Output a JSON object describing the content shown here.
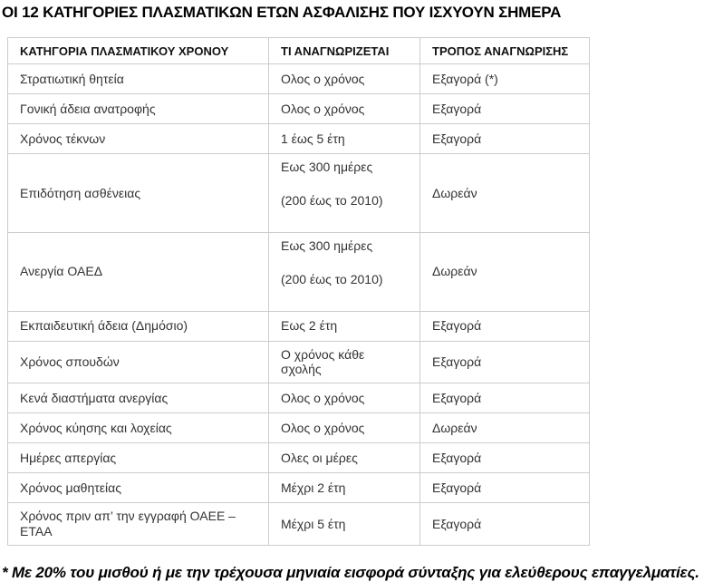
{
  "page": {
    "title": "ΟΙ 12 ΚΑΤΗΓΟΡΙΕΣ ΠΛΑΣΜΑΤΙΚΩΝ ΕΤΩΝ ΑΣΦΑΛΙΣΗΣ ΠΟΥ ΙΣΧΥΟΥΝ ΣΗΜΕΡΑ",
    "footnote": "* Με 20% του μισθού ή με την τρέχουσα μηνιαία εισφορά σύνταξης για ελεύθερους επαγγελματίες."
  },
  "colors": {
    "background": "#ffffff",
    "title_text": "#000000",
    "body_text": "#333333",
    "table_border": "#cccccc"
  },
  "table": {
    "headers": [
      "ΚΑΤΗΓΟΡΙΑ ΠΛΑΣΜΑΤΙΚΟΥ ΧΡΟΝΟΥ",
      "ΤΙ ΑΝΑΓΝΩΡΙΖΕΤΑΙ",
      "ΤΡΟΠΟΣ ΑΝΑΓΝΩΡΙΣΗΣ"
    ],
    "rows": [
      {
        "category": "Στρατιωτική θητεία",
        "recognized": [
          "Ολος ο χρόνος"
        ],
        "method": "Εξαγορά (*)"
      },
      {
        "category": "Γονική άδεια ανατροφής",
        "recognized": [
          "Ολος ο χρόνος"
        ],
        "method": "Εξαγορά"
      },
      {
        "category": "Χρόνος τέκνων",
        "recognized": [
          "1 έως 5 έτη"
        ],
        "method": "Εξαγορά"
      },
      {
        "category": "Επιδότηση ασθένειας",
        "recognized": [
          "Εως 300 ημέρες",
          "(200 έως το 2010)"
        ],
        "method": "Δωρεάν"
      },
      {
        "category": "Ανεργία ΟΑΕΔ",
        "recognized": [
          "Εως 300 ημέρες",
          "(200 έως το 2010)"
        ],
        "method": "Δωρεάν"
      },
      {
        "category": "Εκπαιδευτική άδεια (Δημόσιο)",
        "recognized": [
          "Εως 2 έτη"
        ],
        "method": "Εξαγορά"
      },
      {
        "category": "Χρόνος σπουδών",
        "recognized": [
          "Ο χρόνος κάθε σχολής"
        ],
        "method": "Εξαγορά"
      },
      {
        "category": "Κενά διαστήματα ανεργίας",
        "recognized": [
          "Ολος ο χρόνος"
        ],
        "method": "Εξαγορά"
      },
      {
        "category": "Χρόνος κύησης και λοχείας",
        "recognized": [
          "Ολος ο χρόνος"
        ],
        "method": "Δωρεάν"
      },
      {
        "category": "Ημέρες απεργίας",
        "recognized": [
          "Ολες οι μέρες"
        ],
        "method": "Εξαγορά"
      },
      {
        "category": "Χρόνος μαθητείας",
        "recognized": [
          "Μέχρι 2 έτη"
        ],
        "method": "Εξαγορά"
      },
      {
        "category": "Χρόνος πριν απ’ την εγγραφή ΟΑΕΕ – ΕΤΑΑ",
        "recognized": [
          "Μέχρι 5 έτη"
        ],
        "method": "Εξαγορά"
      }
    ]
  }
}
